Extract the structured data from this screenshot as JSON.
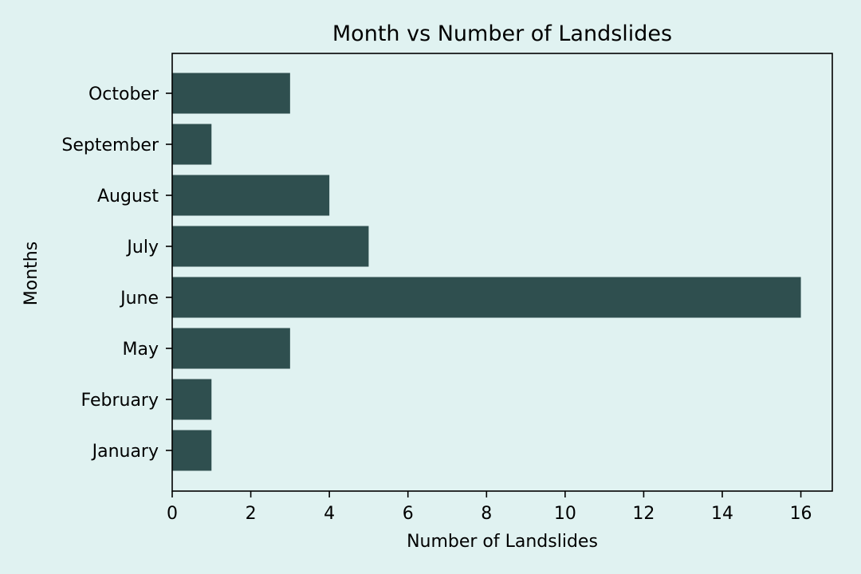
{
  "colors": {
    "background": "#e0f2f1",
    "bar": "#2f4f4f",
    "axis": "#000000"
  },
  "chart_data": {
    "type": "bar",
    "orientation": "horizontal",
    "title": "Month vs Number of Landslides",
    "xlabel": "Number of Landslides",
    "ylabel": "Months",
    "categories": [
      "January",
      "February",
      "May",
      "June",
      "July",
      "August",
      "September",
      "October"
    ],
    "values": [
      1,
      1,
      3,
      16,
      5,
      4,
      1,
      3
    ],
    "xlim": [
      0,
      16.8
    ],
    "xticks": [
      0,
      2,
      4,
      6,
      8,
      10,
      12,
      14,
      16
    ],
    "grid": false,
    "legend": false
  }
}
